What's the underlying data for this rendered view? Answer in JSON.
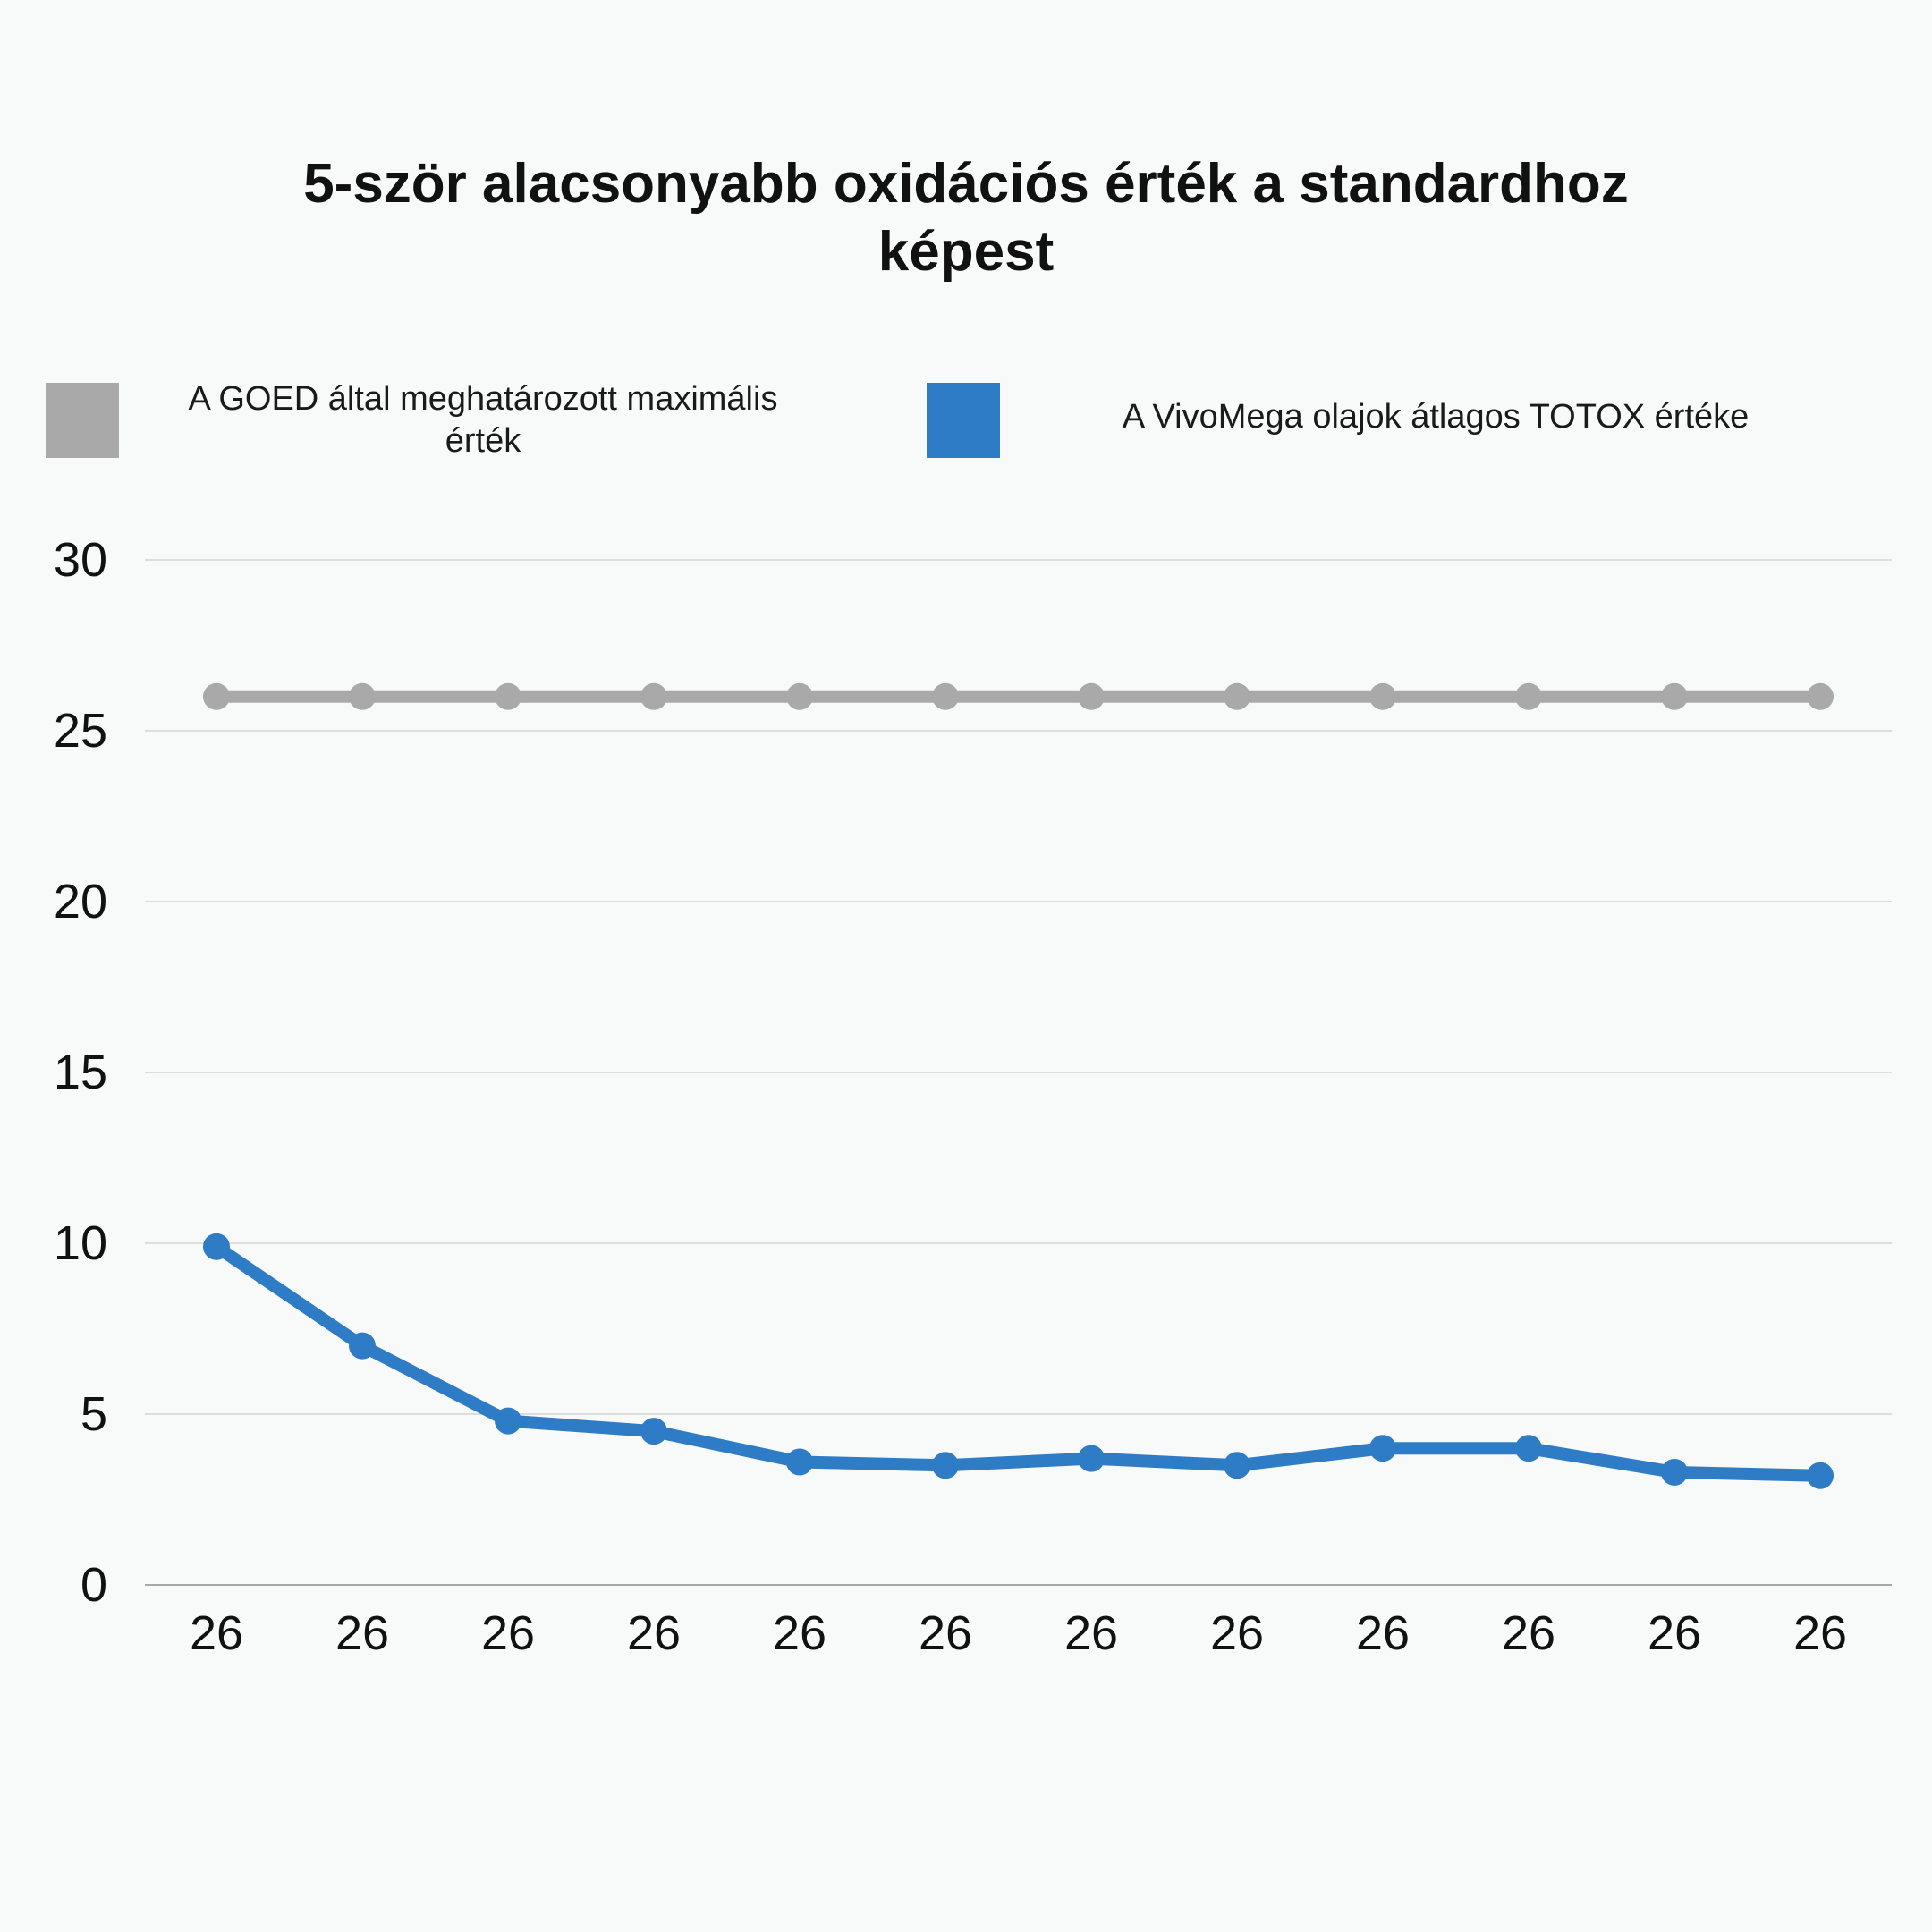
{
  "chart_data": {
    "type": "line",
    "title": "5-ször alacsonyabb oxidációs érték a standardhoz képest",
    "xlabel": "",
    "ylabel": "",
    "ylim": [
      0,
      30
    ],
    "yticks": [
      0,
      5,
      10,
      15,
      20,
      25,
      30
    ],
    "categories": [
      "26",
      "26",
      "26",
      "26",
      "26",
      "26",
      "26",
      "26",
      "26",
      "26",
      "26",
      "26"
    ],
    "grid": true,
    "legend_position": "top",
    "series": [
      {
        "name": "A GOED által meghatározott maximális érték",
        "color": "#a9a9a9",
        "values": [
          26,
          26,
          26,
          26,
          26,
          26,
          26,
          26,
          26,
          26,
          26,
          26
        ]
      },
      {
        "name": "A VivoMega olajok átlagos TOTOX értéke",
        "color": "#2e7bc6",
        "values": [
          9.9,
          7.0,
          4.8,
          4.5,
          3.6,
          3.5,
          3.7,
          3.5,
          4.0,
          4.0,
          3.3,
          3.2
        ]
      }
    ]
  }
}
